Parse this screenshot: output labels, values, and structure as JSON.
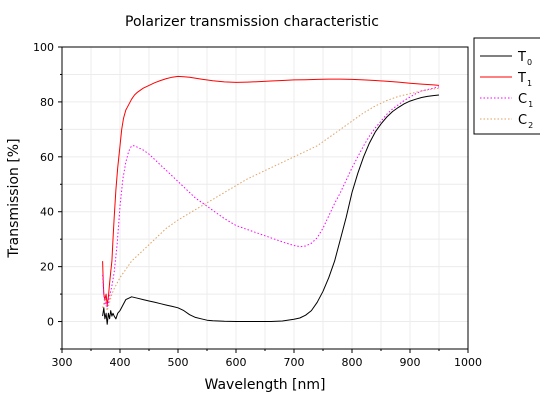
{
  "chart_data": {
    "type": "line",
    "title": "Polarizer transmission characteristic",
    "xlabel": "Wavelength [nm]",
    "ylabel": "Transmission [%]",
    "xlim": [
      300,
      1000
    ],
    "ylim": [
      -10,
      100
    ],
    "xticks": [
      300,
      400,
      500,
      600,
      700,
      800,
      900,
      1000
    ],
    "yticks": [
      0,
      20,
      40,
      60,
      80,
      100
    ],
    "grid": true,
    "legend_position": "top-right",
    "series": [
      {
        "name": "T",
        "sub": "0",
        "color": "#000000",
        "dash": "solid",
        "x": [
          370,
          372,
          374,
          376,
          378,
          380,
          382,
          384,
          386,
          388,
          390,
          393,
          396,
          400,
          405,
          410,
          420,
          430,
          440,
          450,
          460,
          470,
          480,
          490,
          500,
          510,
          520,
          530,
          540,
          550,
          560,
          580,
          600,
          620,
          640,
          660,
          680,
          700,
          710,
          720,
          730,
          740,
          750,
          760,
          770,
          780,
          790,
          800,
          810,
          820,
          830,
          840,
          850,
          860,
          870,
          880,
          890,
          900,
          910,
          920,
          930,
          940,
          950
        ],
        "y": [
          2,
          5,
          1,
          3,
          -1,
          3,
          1,
          4,
          2,
          3,
          2,
          1,
          3,
          4,
          6,
          8,
          9,
          8.5,
          8,
          7.5,
          7,
          6.5,
          6,
          5.5,
          5,
          4,
          2.5,
          1.5,
          1,
          0.5,
          0.3,
          0.1,
          0,
          0,
          0,
          0,
          0.2,
          0.8,
          1.3,
          2.3,
          4,
          7,
          11,
          16,
          22,
          30,
          38,
          47,
          54,
          60,
          65,
          69,
          72,
          74.5,
          76.5,
          78,
          79.3,
          80.3,
          81,
          81.6,
          82,
          82.3,
          82.5
        ]
      },
      {
        "name": "T",
        "sub": "1",
        "color": "#ff0000",
        "dash": "solid",
        "x": [
          370,
          371,
          372,
          374,
          376,
          378,
          380,
          382,
          384,
          386,
          388,
          390,
          393,
          396,
          400,
          403,
          406,
          410,
          415,
          420,
          425,
          430,
          440,
          450,
          460,
          470,
          480,
          490,
          500,
          510,
          520,
          540,
          560,
          580,
          600,
          620,
          640,
          660,
          680,
          700,
          720,
          740,
          760,
          780,
          800,
          820,
          840,
          860,
          880,
          900,
          920,
          940,
          950
        ],
        "y": [
          22,
          15,
          10,
          8,
          10,
          6,
          9,
          14,
          18,
          22,
          30,
          38,
          48,
          56,
          64,
          70,
          74,
          77,
          79,
          81,
          82.5,
          83.5,
          85,
          86,
          87,
          87.8,
          88.5,
          89,
          89.3,
          89.2,
          89,
          88.3,
          87.7,
          87.3,
          87.1,
          87.2,
          87.4,
          87.6,
          87.8,
          88,
          88.1,
          88.2,
          88.3,
          88.3,
          88.2,
          88,
          87.8,
          87.5,
          87.2,
          86.8,
          86.5,
          86.2,
          86
        ]
      },
      {
        "name": "C",
        "sub": "1",
        "color": "#ff00ff",
        "dash": "dotted",
        "x": [
          370,
          372,
          374,
          376,
          378,
          380,
          383,
          386,
          390,
          395,
          400,
          405,
          410,
          415,
          420,
          425,
          430,
          440,
          450,
          460,
          470,
          480,
          490,
          500,
          510,
          520,
          530,
          540,
          550,
          560,
          570,
          580,
          600,
          620,
          640,
          660,
          680,
          700,
          710,
          720,
          730,
          740,
          750,
          760,
          770,
          780,
          790,
          800,
          810,
          820,
          830,
          840,
          850,
          860,
          870,
          880,
          890,
          900,
          910,
          920,
          930,
          940,
          950
        ],
        "y": [
          17,
          10,
          6,
          8,
          5,
          7,
          10,
          13,
          18,
          28,
          42,
          52,
          58,
          62,
          64,
          64,
          63.5,
          62.5,
          61,
          59,
          57,
          55,
          53,
          51,
          49,
          47,
          45,
          43.5,
          42,
          40.5,
          39,
          37.5,
          35,
          33.5,
          32,
          30.5,
          29,
          27.7,
          27.3,
          27.5,
          28.5,
          30.5,
          34,
          38.5,
          43,
          47,
          51.5,
          56,
          60,
          64,
          67.5,
          70.5,
          73,
          75.5,
          77.5,
          79,
          80.5,
          81.8,
          83,
          84,
          84.5,
          85,
          85.5
        ]
      },
      {
        "name": "C",
        "sub": "2",
        "color": "#e0a060",
        "dash": "dotted",
        "x": [
          370,
          374,
          378,
          382,
          386,
          390,
          395,
          400,
          410,
          420,
          430,
          440,
          450,
          460,
          470,
          480,
          490,
          500,
          520,
          540,
          560,
          580,
          600,
          620,
          640,
          660,
          680,
          700,
          720,
          740,
          760,
          780,
          800,
          820,
          840,
          860,
          880,
          900,
          920,
          940,
          950
        ],
        "y": [
          5,
          8,
          4,
          7,
          10,
          12,
          14,
          16,
          19,
          22,
          24,
          26,
          28,
          30,
          32,
          34,
          35.5,
          37,
          39.5,
          42,
          44.5,
          47,
          49.5,
          52,
          54,
          56,
          58,
          60,
          62,
          64,
          67,
          70,
          73,
          76,
          78.5,
          80.5,
          82,
          83,
          84,
          84.7,
          85
        ]
      }
    ]
  }
}
